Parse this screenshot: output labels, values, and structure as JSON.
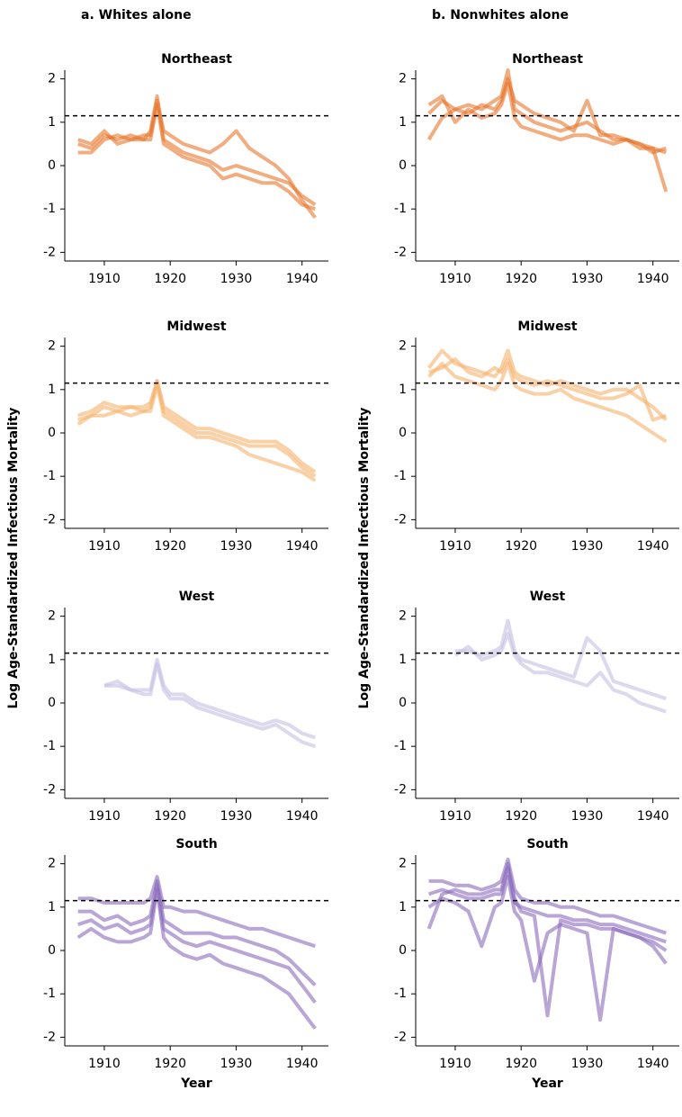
{
  "chart_data": [
    {
      "type": "line",
      "panel_label": "a. Whites alone",
      "title": "Northeast",
      "x": [
        1906,
        1908,
        1910,
        1912,
        1914,
        1916,
        1917,
        1918,
        1919,
        1920,
        1922,
        1924,
        1926,
        1928,
        1930,
        1932,
        1934,
        1936,
        1938,
        1940,
        1942
      ],
      "xlim": [
        1904,
        1944
      ],
      "xticks": [
        1910,
        1920,
        1930,
        1940
      ],
      "ylim": [
        -2.2,
        2.2
      ],
      "yticks": [
        -2,
        -1,
        0,
        1,
        2
      ],
      "reference_line": 1.15,
      "series": [
        {
          "color": "#e8742a",
          "values": [
            0.5,
            0.4,
            0.7,
            0.6,
            0.7,
            0.6,
            0.8,
            1.6,
            0.6,
            0.5,
            0.3,
            0.2,
            0.1,
            -0.1,
            0.0,
            -0.1,
            -0.2,
            -0.3,
            -0.4,
            -0.7,
            -0.9
          ]
        },
        {
          "color": "#e8742a",
          "values": [
            0.3,
            0.3,
            0.6,
            0.7,
            0.6,
            0.7,
            0.7,
            1.5,
            0.8,
            0.7,
            0.5,
            0.4,
            0.3,
            0.5,
            0.8,
            0.4,
            0.2,
            0.0,
            -0.3,
            -0.8,
            -1.2
          ]
        },
        {
          "color": "#e8742a",
          "values": [
            0.6,
            0.5,
            0.8,
            0.5,
            0.6,
            0.6,
            0.6,
            1.4,
            0.5,
            0.4,
            0.2,
            0.1,
            0.0,
            -0.3,
            -0.2,
            -0.3,
            -0.4,
            -0.4,
            -0.6,
            -0.9,
            -1.0
          ]
        }
      ]
    },
    {
      "type": "line",
      "panel_label": "b. Nonwhites alone",
      "title": "Northeast",
      "x": [
        1906,
        1908,
        1910,
        1912,
        1914,
        1916,
        1917,
        1918,
        1919,
        1920,
        1922,
        1924,
        1926,
        1928,
        1930,
        1932,
        1934,
        1936,
        1938,
        1940,
        1942
      ],
      "xlim": [
        1904,
        1944
      ],
      "xticks": [
        1910,
        1920,
        1930,
        1940
      ],
      "ylim": [
        -2.2,
        2.2
      ],
      "yticks": [
        -2,
        -1,
        0,
        1,
        2
      ],
      "reference_line": 1.15,
      "series": [
        {
          "color": "#e8742a",
          "values": [
            1.2,
            1.5,
            1.3,
            1.4,
            1.3,
            1.5,
            1.6,
            2.2,
            1.3,
            1.2,
            1.0,
            0.9,
            0.8,
            0.9,
            1.0,
            0.8,
            0.6,
            0.6,
            0.5,
            0.4,
            0.3
          ]
        },
        {
          "color": "#e8742a",
          "values": [
            0.6,
            1.1,
            1.3,
            1.2,
            1.4,
            1.3,
            1.5,
            2.0,
            1.5,
            1.4,
            1.2,
            1.1,
            1.0,
            0.8,
            1.5,
            0.7,
            0.7,
            0.6,
            0.4,
            0.4,
            -0.6
          ]
        },
        {
          "color": "#e8742a",
          "values": [
            1.4,
            1.6,
            1.0,
            1.3,
            1.1,
            1.2,
            1.4,
            1.9,
            1.1,
            0.9,
            0.8,
            0.7,
            0.6,
            0.7,
            0.7,
            0.6,
            0.5,
            0.6,
            0.5,
            0.3,
            0.4
          ]
        }
      ]
    },
    {
      "type": "line",
      "title": "Midwest",
      "ylabel": "Log Age-Standardized Infectious Mortality",
      "x": [
        1906,
        1908,
        1910,
        1912,
        1914,
        1916,
        1917,
        1918,
        1919,
        1920,
        1922,
        1924,
        1926,
        1928,
        1930,
        1932,
        1934,
        1936,
        1938,
        1940,
        1942
      ],
      "xlim": [
        1904,
        1944
      ],
      "xticks": [
        1910,
        1920,
        1930,
        1940
      ],
      "ylim": [
        -2.2,
        2.2
      ],
      "yticks": [
        -2,
        -1,
        0,
        1,
        2
      ],
      "reference_line": 1.15,
      "series": [
        {
          "color": "#f6b26c",
          "values": [
            0.3,
            0.4,
            0.6,
            0.5,
            0.6,
            0.5,
            0.6,
            1.2,
            0.5,
            0.4,
            0.2,
            0.0,
            0.0,
            -0.1,
            -0.2,
            -0.3,
            -0.3,
            -0.3,
            -0.5,
            -0.8,
            -1.0
          ]
        },
        {
          "color": "#f6b26c",
          "values": [
            0.2,
            0.4,
            0.4,
            0.5,
            0.4,
            0.5,
            0.5,
            1.1,
            0.4,
            0.3,
            0.1,
            -0.1,
            -0.1,
            -0.2,
            -0.3,
            -0.5,
            -0.6,
            -0.7,
            -0.8,
            -0.9,
            -1.1
          ]
        },
        {
          "color": "#f6b26c",
          "values": [
            0.4,
            0.5,
            0.7,
            0.6,
            0.6,
            0.6,
            0.7,
            1.2,
            0.6,
            0.5,
            0.3,
            0.1,
            0.1,
            0.0,
            -0.1,
            -0.2,
            -0.2,
            -0.2,
            -0.4,
            -0.7,
            -0.9
          ]
        }
      ]
    },
    {
      "type": "line",
      "title": "Midwest",
      "ylabel": "Log Age-Standardized Infectious Mortality",
      "x": [
        1906,
        1908,
        1910,
        1912,
        1914,
        1916,
        1917,
        1918,
        1919,
        1920,
        1922,
        1924,
        1926,
        1928,
        1930,
        1932,
        1934,
        1936,
        1938,
        1940,
        1942
      ],
      "xlim": [
        1904,
        1944
      ],
      "xticks": [
        1910,
        1920,
        1930,
        1940
      ],
      "ylim": [
        -2.2,
        2.2
      ],
      "yticks": [
        -2,
        -1,
        0,
        1,
        2
      ],
      "reference_line": 1.15,
      "series": [
        {
          "color": "#f6b26c",
          "values": [
            1.5,
            1.9,
            1.6,
            1.5,
            1.4,
            1.3,
            1.5,
            1.9,
            1.4,
            1.3,
            1.2,
            1.1,
            1.2,
            1.1,
            1.0,
            0.9,
            1.0,
            1.0,
            0.8,
            0.6,
            0.3
          ]
        },
        {
          "color": "#f6b26c",
          "values": [
            1.3,
            1.6,
            1.3,
            1.2,
            1.1,
            1.0,
            1.2,
            1.6,
            1.1,
            1.0,
            0.9,
            0.9,
            1.0,
            0.8,
            0.7,
            0.6,
            0.5,
            0.4,
            0.2,
            0.0,
            -0.2
          ]
        },
        {
          "color": "#f6b26c",
          "values": [
            1.4,
            1.5,
            1.7,
            1.4,
            1.3,
            1.5,
            1.4,
            1.7,
            1.3,
            1.2,
            1.1,
            1.2,
            1.1,
            1.0,
            0.9,
            0.8,
            0.8,
            0.9,
            1.1,
            0.3,
            0.4
          ]
        }
      ]
    },
    {
      "type": "line",
      "title": "West",
      "x": [
        1906,
        1908,
        1910,
        1912,
        1914,
        1916,
        1917,
        1918,
        1919,
        1920,
        1922,
        1924,
        1926,
        1928,
        1930,
        1932,
        1934,
        1936,
        1938,
        1940,
        1942
      ],
      "xlim": [
        1904,
        1944
      ],
      "xticks": [
        1910,
        1920,
        1930,
        1940
      ],
      "ylim": [
        -2.2,
        2.2
      ],
      "yticks": [
        -2,
        -1,
        0,
        1,
        2
      ],
      "reference_line": 1.15,
      "series": [
        {
          "color": "#c5bfe2",
          "values": [
            null,
            null,
            0.4,
            0.5,
            0.3,
            0.3,
            0.3,
            1.0,
            0.4,
            0.2,
            0.2,
            0.0,
            -0.1,
            -0.2,
            -0.3,
            -0.4,
            -0.5,
            -0.4,
            -0.5,
            -0.7,
            -0.8
          ]
        },
        {
          "color": "#c5bfe2",
          "values": [
            null,
            null,
            0.4,
            0.4,
            0.3,
            0.2,
            0.2,
            0.9,
            0.3,
            0.1,
            0.1,
            -0.1,
            -0.2,
            -0.3,
            -0.4,
            -0.5,
            -0.6,
            -0.5,
            -0.7,
            -0.9,
            -1.0
          ]
        }
      ]
    },
    {
      "type": "line",
      "title": "West",
      "x": [
        1906,
        1908,
        1910,
        1912,
        1914,
        1916,
        1917,
        1918,
        1919,
        1920,
        1922,
        1924,
        1926,
        1928,
        1930,
        1932,
        1934,
        1936,
        1938,
        1940,
        1942
      ],
      "xlim": [
        1904,
        1944
      ],
      "xticks": [
        1910,
        1920,
        1930,
        1940
      ],
      "ylim": [
        -2.2,
        2.2
      ],
      "yticks": [
        -2,
        -1,
        0,
        1,
        2
      ],
      "reference_line": 1.15,
      "series": [
        {
          "color": "#c5bfe2",
          "values": [
            null,
            null,
            1.2,
            1.2,
            1.1,
            1.2,
            1.3,
            1.9,
            1.2,
            1.0,
            0.9,
            0.8,
            0.7,
            0.6,
            1.5,
            1.2,
            0.5,
            0.4,
            0.3,
            0.2,
            0.1
          ]
        },
        {
          "color": "#c5bfe2",
          "values": [
            null,
            null,
            1.1,
            1.3,
            1.0,
            1.1,
            1.2,
            1.6,
            1.1,
            0.9,
            0.7,
            0.7,
            0.6,
            0.5,
            0.4,
            0.7,
            0.3,
            0.2,
            0.0,
            -0.1,
            -0.2
          ]
        }
      ]
    },
    {
      "type": "line",
      "title": "South",
      "xlabel": "Year",
      "x": [
        1906,
        1908,
        1910,
        1912,
        1914,
        1916,
        1917,
        1918,
        1919,
        1920,
        1922,
        1924,
        1926,
        1928,
        1930,
        1932,
        1934,
        1936,
        1938,
        1940,
        1942
      ],
      "xlim": [
        1904,
        1944
      ],
      "xticks": [
        1910,
        1920,
        1930,
        1940
      ],
      "ylim": [
        -2.2,
        2.2
      ],
      "yticks": [
        -2,
        -1,
        0,
        1,
        2
      ],
      "reference_line": 1.15,
      "series": [
        {
          "color": "#8a6bbd",
          "values": [
            1.2,
            1.2,
            1.1,
            1.1,
            1.1,
            1.1,
            1.2,
            1.7,
            1.0,
            1.0,
            0.9,
            0.9,
            0.8,
            0.7,
            0.6,
            0.5,
            0.5,
            0.4,
            0.3,
            0.2,
            0.1
          ]
        },
        {
          "color": "#8a6bbd",
          "values": [
            0.6,
            0.7,
            0.5,
            0.6,
            0.4,
            0.5,
            0.6,
            1.5,
            0.5,
            0.4,
            0.2,
            0.1,
            0.2,
            0.1,
            0.0,
            -0.1,
            -0.2,
            -0.3,
            -0.4,
            -0.8,
            -1.2
          ]
        },
        {
          "color": "#8a6bbd",
          "values": [
            0.3,
            0.5,
            0.3,
            0.2,
            0.2,
            0.3,
            0.4,
            1.4,
            0.3,
            0.1,
            -0.1,
            -0.2,
            -0.1,
            -0.3,
            -0.4,
            -0.5,
            -0.6,
            -0.8,
            -1.0,
            -1.4,
            -1.8
          ]
        },
        {
          "color": "#8a6bbd",
          "values": [
            0.9,
            0.9,
            0.7,
            0.8,
            0.6,
            0.7,
            0.8,
            1.6,
            0.7,
            0.6,
            0.4,
            0.4,
            0.4,
            0.3,
            0.3,
            0.2,
            0.1,
            0.0,
            -0.2,
            -0.5,
            -0.8
          ]
        }
      ]
    },
    {
      "type": "line",
      "title": "South",
      "xlabel": "Year",
      "x": [
        1906,
        1908,
        1910,
        1912,
        1914,
        1916,
        1917,
        1918,
        1919,
        1920,
        1922,
        1924,
        1926,
        1928,
        1930,
        1932,
        1934,
        1936,
        1938,
        1940,
        1942
      ],
      "xlim": [
        1904,
        1944
      ],
      "xticks": [
        1910,
        1920,
        1930,
        1940
      ],
      "ylim": [
        -2.2,
        2.2
      ],
      "yticks": [
        -2,
        -1,
        0,
        1,
        2
      ],
      "reference_line": 1.15,
      "series": [
        {
          "color": "#8a6bbd",
          "values": [
            1.6,
            1.6,
            1.5,
            1.5,
            1.4,
            1.5,
            1.6,
            2.1,
            1.4,
            1.2,
            1.1,
            1.1,
            1.0,
            1.0,
            0.9,
            0.8,
            0.8,
            0.7,
            0.6,
            0.5,
            0.4
          ]
        },
        {
          "color": "#8a6bbd",
          "values": [
            1.3,
            1.4,
            1.3,
            1.2,
            1.2,
            1.3,
            1.3,
            1.9,
            1.1,
            1.0,
            0.9,
            0.8,
            0.8,
            0.7,
            0.7,
            0.6,
            0.6,
            0.5,
            0.4,
            0.3,
            0.2
          ]
        },
        {
          "color": "#8a6bbd",
          "values": [
            1.0,
            1.2,
            1.1,
            0.9,
            0.1,
            1.0,
            1.1,
            1.7,
            0.9,
            0.7,
            -0.7,
            0.4,
            0.6,
            0.5,
            0.4,
            -1.6,
            0.5,
            0.4,
            0.3,
            0.2,
            0.0
          ]
        },
        {
          "color": "#8a6bbd",
          "values": [
            0.5,
            1.3,
            1.4,
            1.3,
            1.3,
            1.4,
            1.4,
            2.0,
            1.2,
            0.9,
            0.8,
            -1.5,
            0.7,
            0.6,
            0.6,
            0.5,
            0.5,
            0.4,
            0.3,
            0.1,
            -0.3
          ]
        }
      ]
    }
  ]
}
